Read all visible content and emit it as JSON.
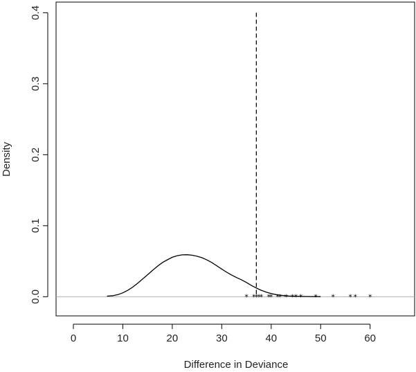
{
  "chart_data": {
    "type": "line",
    "title": "",
    "xlabel": "Difference in Deviance",
    "ylabel": "Density",
    "xlim": [
      -3.5,
      69
    ],
    "ylim": [
      -0.027,
      0.415
    ],
    "x_ticks": [
      0,
      10,
      20,
      30,
      40,
      50,
      60
    ],
    "y_ticks": [
      0.0,
      0.1,
      0.2,
      0.3,
      0.4
    ],
    "x_tick_labels": [
      "0",
      "10",
      "20",
      "30",
      "40",
      "50",
      "60"
    ],
    "y_tick_labels": [
      "0.0",
      "0.1",
      "0.2",
      "0.3",
      "0.4"
    ],
    "grid": false,
    "series": [
      {
        "style": "solid",
        "color": "#000000",
        "x": [
          6.8,
          8,
          9,
          10,
          11,
          12,
          13,
          14,
          15,
          16,
          17,
          18,
          19,
          20,
          21,
          22,
          23,
          24,
          25,
          26,
          27,
          28,
          29,
          30,
          31,
          32,
          33,
          34,
          35,
          36,
          37,
          38,
          39,
          40,
          41,
          42,
          43,
          44,
          46,
          48,
          50
        ],
        "y": [
          0.0008,
          0.0015,
          0.003,
          0.0055,
          0.009,
          0.0135,
          0.019,
          0.025,
          0.031,
          0.037,
          0.043,
          0.048,
          0.052,
          0.0555,
          0.0578,
          0.059,
          0.0592,
          0.0585,
          0.057,
          0.055,
          0.0518,
          0.048,
          0.0435,
          0.039,
          0.0345,
          0.0305,
          0.027,
          0.0238,
          0.02,
          0.0158,
          0.0122,
          0.009,
          0.0065,
          0.0045,
          0.003,
          0.002,
          0.0013,
          0.0008,
          0.0004,
          0.0002,
          0.0001
        ]
      }
    ],
    "reference_vline": {
      "x": 37,
      "y_top": 0.4,
      "style": "dashed",
      "color": "#000000"
    },
    "reference_hline": {
      "y": 0.0,
      "color": "#b0b0b0"
    },
    "rug_points": [
      35,
      36.5,
      37,
      37.5,
      38,
      39.5,
      40,
      41.3,
      41.8,
      43,
      44.3,
      45,
      46,
      49,
      52.5,
      56,
      57,
      60
    ],
    "rug_marker": "*"
  }
}
